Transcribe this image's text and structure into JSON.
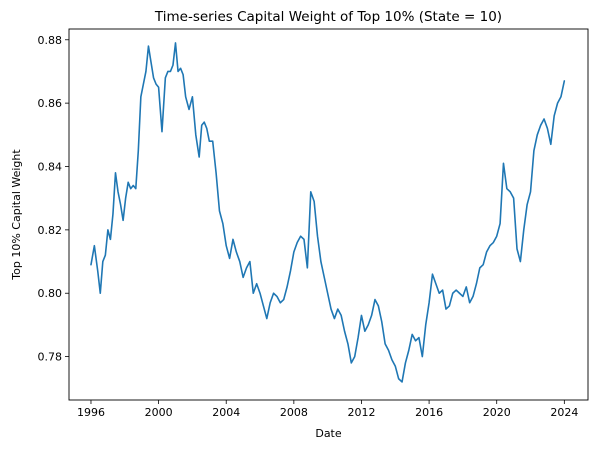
{
  "chart_data": {
    "type": "line",
    "title": "Time-series Capital Weight of Top 10% (State = 10)",
    "xlabel": "Date",
    "ylabel": "Top 10% Capital Weight",
    "xlim": [
      1994.7,
      2025.4
    ],
    "ylim": [
      0.7663,
      0.8834
    ],
    "xticks": [
      1996,
      2000,
      2004,
      2008,
      2012,
      2016,
      2020,
      2024
    ],
    "xtick_labels": [
      "1996",
      "2000",
      "2004",
      "2008",
      "2012",
      "2016",
      "2020",
      "2024"
    ],
    "yticks": [
      0.78,
      0.8,
      0.82,
      0.84,
      0.86,
      0.88
    ],
    "ytick_labels": [
      "0.78",
      "0.80",
      "0.82",
      "0.84",
      "0.86",
      "0.88"
    ],
    "grid": false,
    "line_color": "#1f77b4",
    "series": [
      {
        "x": [
          1996.0,
          1996.2,
          1996.4,
          1996.55,
          1996.7,
          1996.85,
          1997.0,
          1997.15,
          1997.3,
          1997.45,
          1997.6,
          1997.75,
          1997.9,
          1998.05,
          1998.2,
          1998.35,
          1998.5,
          1998.65,
          1998.8,
          1998.95,
          1999.1,
          1999.25,
          1999.4,
          1999.55,
          1999.7,
          1999.85,
          2000.0,
          2000.2,
          2000.4,
          2000.55,
          2000.7,
          2000.85,
          2001.0,
          2001.15,
          2001.3,
          2001.45,
          2001.6,
          2001.8,
          2002.0,
          2002.2,
          2002.4,
          2002.55,
          2002.7,
          2002.85,
          2003.0,
          2003.2,
          2003.4,
          2003.6,
          2003.8,
          2004.0,
          2004.2,
          2004.4,
          2004.6,
          2004.8,
          2005.0,
          2005.2,
          2005.4,
          2005.6,
          2005.8,
          2006.0,
          2006.2,
          2006.4,
          2006.6,
          2006.8,
          2007.0,
          2007.2,
          2007.4,
          2007.6,
          2007.8,
          2008.0,
          2008.2,
          2008.4,
          2008.6,
          2008.8,
          2009.0,
          2009.2,
          2009.4,
          2009.6,
          2009.8,
          2010.0,
          2010.2,
          2010.4,
          2010.6,
          2010.8,
          2011.0,
          2011.2,
          2011.4,
          2011.6,
          2011.8,
          2012.0,
          2012.2,
          2012.4,
          2012.6,
          2012.8,
          2013.0,
          2013.2,
          2013.4,
          2013.6,
          2013.8,
          2014.0,
          2014.2,
          2014.4,
          2014.6,
          2014.8,
          2015.0,
          2015.2,
          2015.4,
          2015.6,
          2015.8,
          2016.0,
          2016.2,
          2016.4,
          2016.6,
          2016.8,
          2017.0,
          2017.2,
          2017.4,
          2017.6,
          2017.8,
          2018.0,
          2018.2,
          2018.4,
          2018.6,
          2018.8,
          2019.0,
          2019.2,
          2019.4,
          2019.6,
          2019.8,
          2020.0,
          2020.2,
          2020.4,
          2020.6,
          2020.8,
          2021.0,
          2021.2,
          2021.4,
          2021.6,
          2021.8,
          2022.0,
          2022.2,
          2022.4,
          2022.6,
          2022.8,
          2023.0,
          2023.2,
          2023.4,
          2023.6,
          2023.8,
          2024.0
        ],
        "values": [
          0.809,
          0.815,
          0.807,
          0.8,
          0.81,
          0.812,
          0.82,
          0.817,
          0.825,
          0.838,
          0.832,
          0.828,
          0.823,
          0.83,
          0.835,
          0.833,
          0.834,
          0.833,
          0.845,
          0.862,
          0.866,
          0.87,
          0.878,
          0.873,
          0.868,
          0.866,
          0.865,
          0.851,
          0.868,
          0.87,
          0.87,
          0.872,
          0.879,
          0.87,
          0.871,
          0.869,
          0.862,
          0.858,
          0.862,
          0.85,
          0.843,
          0.853,
          0.854,
          0.852,
          0.848,
          0.848,
          0.838,
          0.826,
          0.822,
          0.815,
          0.811,
          0.817,
          0.813,
          0.81,
          0.805,
          0.808,
          0.81,
          0.8,
          0.803,
          0.8,
          0.796,
          0.792,
          0.797,
          0.8,
          0.799,
          0.797,
          0.798,
          0.802,
          0.807,
          0.813,
          0.816,
          0.818,
          0.817,
          0.808,
          0.832,
          0.829,
          0.818,
          0.81,
          0.805,
          0.8,
          0.795,
          0.792,
          0.795,
          0.793,
          0.788,
          0.784,
          0.778,
          0.78,
          0.786,
          0.793,
          0.788,
          0.79,
          0.793,
          0.798,
          0.796,
          0.791,
          0.784,
          0.782,
          0.779,
          0.777,
          0.773,
          0.772,
          0.778,
          0.782,
          0.787,
          0.785,
          0.786,
          0.78,
          0.79,
          0.797,
          0.806,
          0.803,
          0.8,
          0.801,
          0.795,
          0.796,
          0.8,
          0.801,
          0.8,
          0.799,
          0.802,
          0.797,
          0.799,
          0.803,
          0.808,
          0.809,
          0.813,
          0.815,
          0.816,
          0.818,
          0.822,
          0.841,
          0.833,
          0.832,
          0.83,
          0.814,
          0.81,
          0.82,
          0.828,
          0.832,
          0.845,
          0.85,
          0.853,
          0.855,
          0.852,
          0.847,
          0.856,
          0.86,
          0.862,
          0.867
        ]
      }
    ]
  }
}
